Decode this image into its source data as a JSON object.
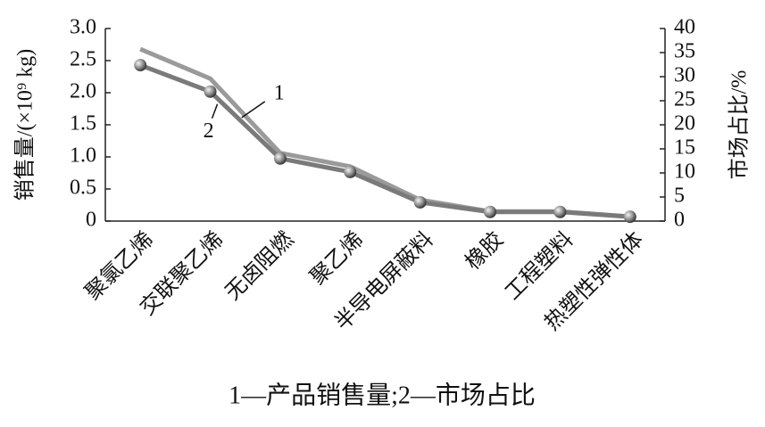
{
  "chart_data": {
    "type": "line",
    "categories": [
      "聚氯乙烯",
      "交联聚乙烯",
      "无卤阻燃",
      "聚乙烯",
      "半导电屏蔽料",
      "橡胶",
      "工程塑料",
      "热塑性弹性体"
    ],
    "series": [
      {
        "name": "1",
        "color": "#9a9a9a",
        "values": [
          2.68,
          2.22,
          1.06,
          0.85,
          0.33,
          0.15,
          0.15,
          0.07
        ]
      },
      {
        "name": "2",
        "color": "#7a7a7a",
        "axis": "y2",
        "markers": true,
        "values": [
          32.4,
          26.9,
          13,
          10.2,
          3.9,
          1.9,
          1.9,
          0.9
        ]
      }
    ],
    "ylabel": "销售量/(×10⁹ kg)",
    "y2label": "市场占比/%",
    "ylim": [
      0,
      3
    ],
    "yticks": [
      0,
      0.5,
      {
        "value": 1,
        "label": "1.0"
      },
      1.5,
      {
        "value": 2,
        "label": "2.0"
      },
      2.5,
      {
        "value": 3,
        "label": "3.0"
      }
    ],
    "y2lim": [
      0,
      40
    ],
    "y2ticks": [
      0,
      5,
      10,
      15,
      20,
      25,
      30,
      35,
      40
    ],
    "caption": "1—产品销售量;2—市场占比"
  }
}
